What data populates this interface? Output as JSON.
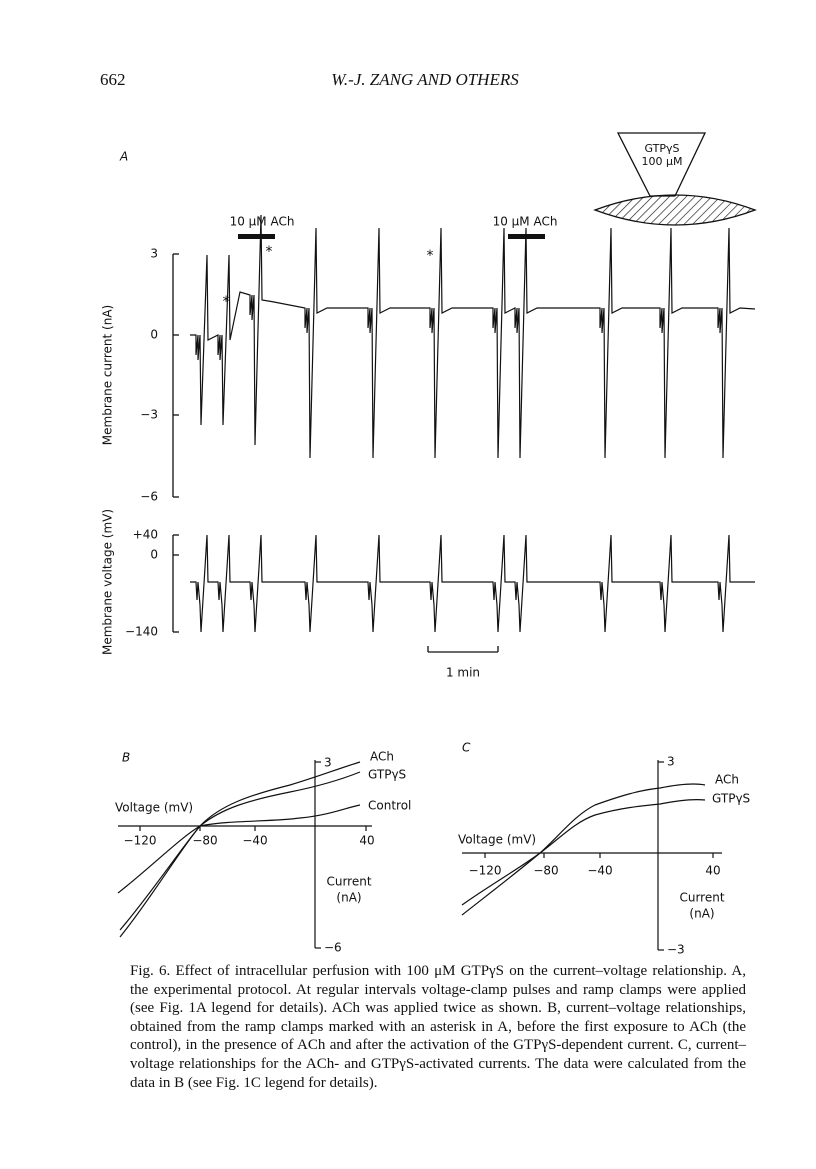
{
  "header": {
    "page_number": "662",
    "running_title": "W.-J. ZANG AND OTHERS"
  },
  "figure": {
    "panel_a": {
      "label": "A",
      "pipette_label": [
        "GTPγS",
        "100 μM"
      ],
      "ach_labels": [
        "10 μM ACh",
        "10 μM ACh"
      ],
      "asterisks": [
        "*",
        "*",
        "*"
      ],
      "current_axis": {
        "label": "Membrane current (nA)",
        "ticks": [
          "3",
          "0",
          "−3",
          "−6"
        ]
      },
      "voltage_axis": {
        "label": "Membrane voltage (mV)",
        "ticks": [
          "+40",
          "0",
          "−140"
        ]
      },
      "scale_bar": "1 min"
    },
    "panel_b": {
      "label": "B",
      "x_label": "Voltage (mV)",
      "x_ticks": [
        "−120",
        "−80",
        "−40",
        "40"
      ],
      "y_label": [
        "Current",
        "(nA)"
      ],
      "y_ticks": [
        "3",
        "−6"
      ],
      "curve_labels": [
        "ACh",
        "GTPγS",
        "Control"
      ]
    },
    "panel_c": {
      "label": "C",
      "x_label": "Voltage (mV)",
      "x_ticks": [
        "−120",
        "−80",
        "−40",
        "40"
      ],
      "y_label": [
        "Current",
        "(nA)"
      ],
      "y_ticks": [
        "3",
        "−3"
      ],
      "curve_labels": [
        "ACh",
        "GTPγS"
      ]
    }
  },
  "caption": "Fig. 6. Effect of intracellular perfusion with 100 μM GTPγS on the current–voltage relationship. A, the experimental protocol. At regular intervals voltage-clamp pulses and ramp clamps were applied (see Fig. 1A legend for details). ACh was applied twice as shown. B, current–voltage relationships, obtained from the ramp clamps marked with an asterisk in A, before the first exposure to ACh (the control), in the presence of ACh and after the activation of the GTPγS-dependent current. C, current–voltage relationships for the ACh- and GTPγS-activated currents. The data were calculated from the data in B (see Fig. 1C legend for details)."
}
